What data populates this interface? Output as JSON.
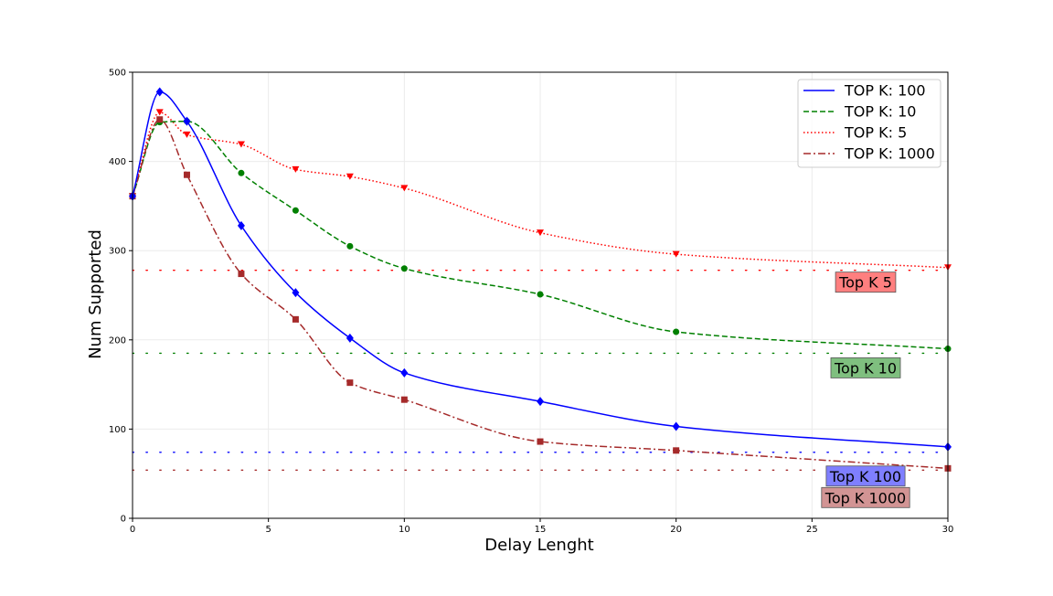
{
  "chart_data": {
    "type": "line",
    "title": "",
    "xlabel": "Delay Lenght",
    "ylabel": "Num Supported",
    "xlim": [
      0,
      30
    ],
    "ylim": [
      0,
      500
    ],
    "xticks": [
      0,
      5,
      10,
      15,
      20,
      25,
      30
    ],
    "yticks": [
      0,
      100,
      200,
      300,
      400,
      500
    ],
    "grid": true,
    "legend_position": "top-right",
    "x": [
      0,
      1,
      2,
      4,
      6,
      8,
      10,
      15,
      20,
      30
    ],
    "series": [
      {
        "name": "TOP K: 100",
        "color": "#0000ff",
        "dash": "solid",
        "marker": "diamond",
        "values": [
          361,
          478,
          445,
          328,
          253,
          202,
          163,
          131,
          103,
          80
        ]
      },
      {
        "name": "TOP K: 10",
        "color": "#008000",
        "dash": "dashed",
        "marker": "circle",
        "values": [
          361,
          444,
          445,
          387,
          345,
          305,
          280,
          251,
          209,
          190
        ]
      },
      {
        "name": "TOP K: 5",
        "color": "#ff0000",
        "dash": "dotted",
        "marker": "triangle-down",
        "values": [
          361,
          455,
          430,
          419,
          391,
          383,
          370,
          320,
          296,
          281
        ]
      },
      {
        "name": "TOP K: 1000",
        "color": "#a52a2a",
        "dash": "dashdot",
        "marker": "square",
        "values": [
          361,
          447,
          385,
          274,
          223,
          152,
          133,
          86,
          76,
          56
        ]
      }
    ],
    "reference_lines": [
      {
        "label": "Top K 5",
        "y": 278,
        "color": "#ff0000",
        "box_color": "#ff7f7f"
      },
      {
        "label": "Top K 10",
        "y": 185,
        "color": "#008000",
        "box_color": "#7fbf7f"
      },
      {
        "label": "Top K 100",
        "y": 74,
        "color": "#0000ff",
        "box_color": "#7f7fff"
      },
      {
        "label": "Top K 1000",
        "y": 54,
        "color": "#a52a2a",
        "box_color": "#d29494"
      }
    ]
  }
}
